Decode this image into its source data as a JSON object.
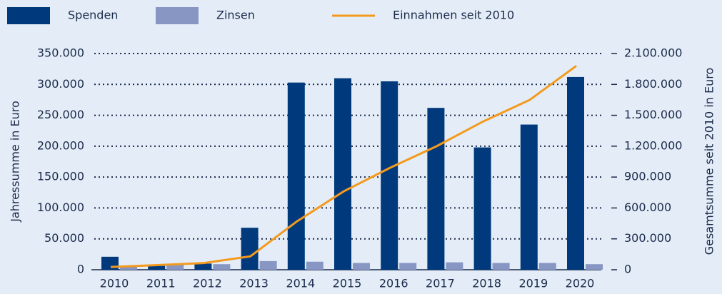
{
  "chart_data": {
    "type": "bar",
    "categories": [
      "2010",
      "2011",
      "2012",
      "2013",
      "2014",
      "2015",
      "2016",
      "2017",
      "2018",
      "2019",
      "2020"
    ],
    "series": [
      {
        "name": "Spenden",
        "color": "#003a7d",
        "values": [
          21000,
          8000,
          10000,
          68000,
          303000,
          310000,
          305000,
          262000,
          198000,
          235000,
          312000
        ]
      },
      {
        "name": "Zinsen",
        "color": "#8896c4",
        "values": [
          6000,
          8000,
          9000,
          14000,
          13000,
          11000,
          11000,
          12000,
          11000,
          11000,
          9000
        ]
      },
      {
        "name": "Einnahmen seit 2010",
        "color": "#f39a1e",
        "type": "line",
        "axis": "y2",
        "values": [
          27000,
          45000,
          65000,
          130000,
          470000,
          760000,
          990000,
          1200000,
          1440000,
          1650000,
          1980000
        ]
      }
    ],
    "ylabel": "Jahressumme in Euro",
    "y2label": "Gesamtsumme seit 2010 in Euro",
    "ylim": [
      0,
      350000
    ],
    "yticks": [
      0,
      {
        "value": 50000,
        "label": "50.000"
      },
      {
        "value": 100000,
        "label": "100.000"
      },
      {
        "value": 150000,
        "label": "150.000"
      },
      {
        "value": 200000,
        "label": "200.000"
      },
      {
        "value": 250000,
        "label": "250.000"
      },
      {
        "value": 300000,
        "label": "300.000"
      },
      {
        "value": 350000,
        "label": "350.000"
      }
    ],
    "y2lim": [
      0,
      2100000
    ],
    "y2ticks": [
      0,
      {
        "value": 300000,
        "label": "300.000"
      },
      {
        "value": 600000,
        "label": "600.000"
      },
      {
        "value": 900000,
        "label": "900.000"
      },
      {
        "value": 1200000,
        "label": "1.200.000"
      },
      {
        "value": 1500000,
        "label": "1.500.000"
      },
      {
        "value": 1800000,
        "label": "1.800.000"
      },
      {
        "value": 2100000,
        "label": "2.100.000"
      }
    ],
    "grid": true,
    "legend": "top"
  }
}
